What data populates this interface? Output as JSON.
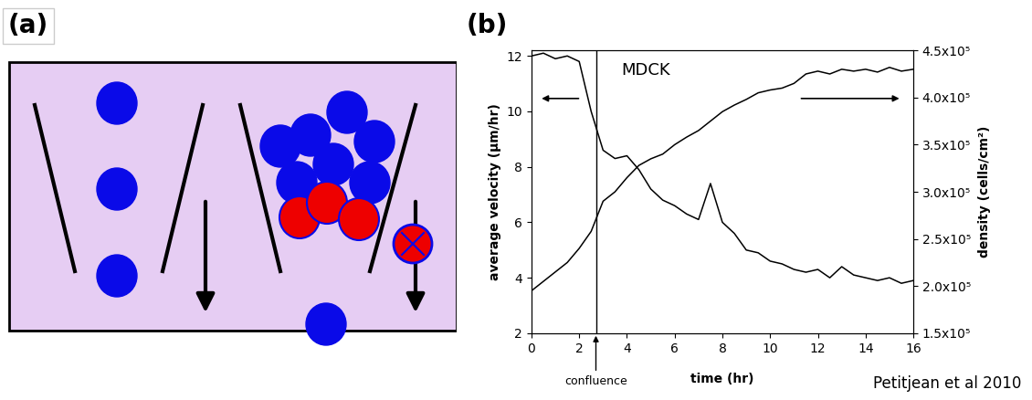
{
  "panel_labels": [
    "(a)",
    "(b)"
  ],
  "credit": "Petitjean et al 2010",
  "chart_data": {
    "type": "line",
    "xlabel": "time (hr)",
    "ylabel": "average velocity (μm/hr)",
    "y2label": "density (cells/cm²)",
    "annotations": [
      {
        "text": "MDCK"
      },
      {
        "text": "confluence",
        "x": 2.7
      }
    ],
    "x": [
      0,
      0.5,
      1,
      1.5,
      2,
      2.5,
      3,
      3.5,
      4,
      4.5,
      5,
      5.5,
      6,
      6.5,
      7,
      7.5,
      8,
      8.5,
      9,
      9.5,
      10,
      10.5,
      11,
      11.5,
      12,
      12.5,
      13,
      13.5,
      14,
      14.5,
      15,
      15.5,
      16
    ],
    "series": [
      {
        "type": "line",
        "color": "#000000",
        "line_style": "solid",
        "values": [
          12.0,
          12.1,
          11.9,
          12.0,
          11.8,
          10.0,
          8.6,
          8.3,
          8.4,
          7.9,
          7.2,
          6.8,
          6.6,
          6.3,
          6.1,
          7.4,
          6.0,
          5.6,
          5.0,
          4.9,
          4.6,
          4.5,
          4.3,
          4.2,
          4.3,
          4.0,
          4.4,
          4.1,
          4.0,
          3.9,
          4.0,
          3.8,
          3.9
        ]
      },
      {
        "type": "line",
        "color": "#000000",
        "line_style": "solid",
        "axis": "y2",
        "values": [
          195000,
          205000,
          215000,
          225000,
          240000,
          258000,
          290000,
          300000,
          315000,
          328000,
          335000,
          340000,
          350000,
          358000,
          365000,
          375000,
          385000,
          392000,
          398000,
          405000,
          408000,
          410000,
          415000,
          425000,
          428000,
          425000,
          430000,
          428000,
          430000,
          427000,
          432000,
          428000,
          430000
        ]
      }
    ],
    "xlim": [
      0,
      16
    ],
    "xticks": [
      0,
      2,
      4,
      6,
      8,
      10,
      12,
      14,
      16
    ],
    "ylim": [
      2,
      12.2
    ],
    "yticks": [
      2,
      4,
      6,
      8,
      10,
      12
    ],
    "y2lim": [
      150000,
      450000
    ],
    "y2ticks": [
      {
        "value": 150000,
        "label": "1.5x10⁵"
      },
      {
        "value": 200000,
        "label": "2.0x10⁵"
      },
      {
        "value": 250000,
        "label": "2.5x10⁵"
      },
      {
        "value": 300000,
        "label": "3.0x10⁵"
      },
      {
        "value": 350000,
        "label": "3.5x10⁵"
      },
      {
        "value": 400000,
        "label": "4.0x10⁵"
      },
      {
        "value": 450000,
        "label": "4.5x10⁵"
      }
    ],
    "grid": false
  }
}
